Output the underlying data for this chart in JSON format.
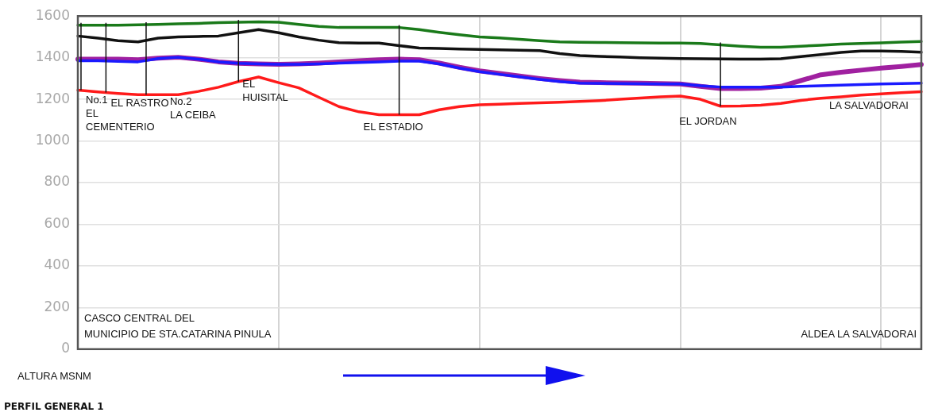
{
  "chart_data": {
    "type": "line",
    "title": "PERFIL GENERAL 1",
    "ylabel": "ALTURA MSNM",
    "categories": [
      null,
      null,
      null,
      null,
      null,
      null,
      null,
      null,
      null,
      null,
      null,
      null,
      null,
      null,
      null,
      null,
      null,
      null,
      null,
      null,
      null,
      null,
      null,
      null,
      null,
      null,
      null,
      null,
      null,
      null,
      null,
      null,
      null,
      null,
      null,
      null,
      null,
      null,
      null,
      null,
      null,
      null,
      null
    ],
    "series": [
      {
        "color": "#1a7a1a",
        "values": [
          1556,
          1556,
          1556,
          1558,
          1560,
          1563,
          1565,
          1568,
          1570,
          1572,
          1570,
          1560,
          1550,
          1545,
          1545,
          1545,
          1545,
          1535,
          1522,
          1510,
          1500,
          1495,
          1488,
          1482,
          1476,
          1474,
          1473,
          1472,
          1471,
          1470,
          1470,
          1468,
          1462,
          1455,
          1450,
          1450,
          1455,
          1460,
          1465,
          1468,
          1471,
          1475,
          1478
        ]
      },
      {
        "color": "#111111",
        "values": [
          1504,
          1494,
          1482,
          1476,
          1494,
          1500,
          1502,
          1504,
          1520,
          1535,
          1520,
          1500,
          1484,
          1472,
          1470,
          1470,
          1458,
          1446,
          1444,
          1442,
          1440,
          1438,
          1436,
          1434,
          1420,
          1410,
          1406,
          1403,
          1400,
          1398,
          1396,
          1395,
          1394,
          1393,
          1393,
          1395,
          1405,
          1415,
          1425,
          1432,
          1432,
          1430,
          1426
        ]
      },
      {
        "color": "#a020a0",
        "values": [
          1393,
          1393,
          1393,
          1390,
          1398,
          1402,
          1393,
          1380,
          1373,
          1370,
          1368,
          1370,
          1374,
          1380,
          1385,
          1390,
          1393,
          1390,
          1374,
          1354,
          1337,
          1324,
          1312,
          1300,
          1290,
          1282,
          1280,
          1279,
          1278,
          1276,
          1274,
          1262,
          1252,
          1252,
          1254,
          1262,
          1290,
          1318,
          1330,
          1340,
          1350,
          1358,
          1367
        ]
      },
      {
        "color": "#1a1aff",
        "values": [
          1385,
          1385,
          1382,
          1380,
          1396,
          1402,
          1393,
          1380,
          1373,
          1370,
          1368,
          1368,
          1370,
          1374,
          1377,
          1380,
          1383,
          1383,
          1370,
          1350,
          1333,
          1320,
          1308,
          1296,
          1285,
          1278,
          1277,
          1276,
          1275,
          1274,
          1274,
          1265,
          1259,
          1259,
          1259,
          1259,
          1262,
          1265,
          1268,
          1271,
          1274,
          1276,
          1278
        ]
      },
      {
        "color": "#ff1a1a",
        "values": [
          1244,
          1236,
          1228,
          1222,
          1222,
          1222,
          1238,
          1258,
          1285,
          1307,
          1280,
          1255,
          1210,
          1165,
          1140,
          1126,
          1126,
          1126,
          1150,
          1165,
          1174,
          1177,
          1180,
          1183,
          1186,
          1190,
          1194,
          1200,
          1206,
          1212,
          1216,
          1200,
          1167,
          1168,
          1172,
          1180,
          1195,
          1205,
          1212,
          1220,
          1226,
          1232,
          1237
        ]
      }
    ],
    "ylim": [
      0,
      1600
    ],
    "yticks": [
      0,
      200,
      400,
      600,
      800,
      1000,
      1200,
      1400,
      1600
    ],
    "grid": true,
    "legend": false,
    "tick_labels": "y",
    "line_style": "solid",
    "marker": "none",
    "annotations": [
      "No.1\nEL\nCEMENTERIO",
      "EL RASTRO",
      "No.2\nLA CEIBA",
      "EL\nHUISITAL",
      "EL ESTADIO",
      "EL JORDAN",
      "LA SALVADORAI",
      "CASCO CENTRAL DEL\nMUNICIPIO DE STA.CATARINA PINULA",
      "ALDEA LA SALVADORAI"
    ]
  }
}
